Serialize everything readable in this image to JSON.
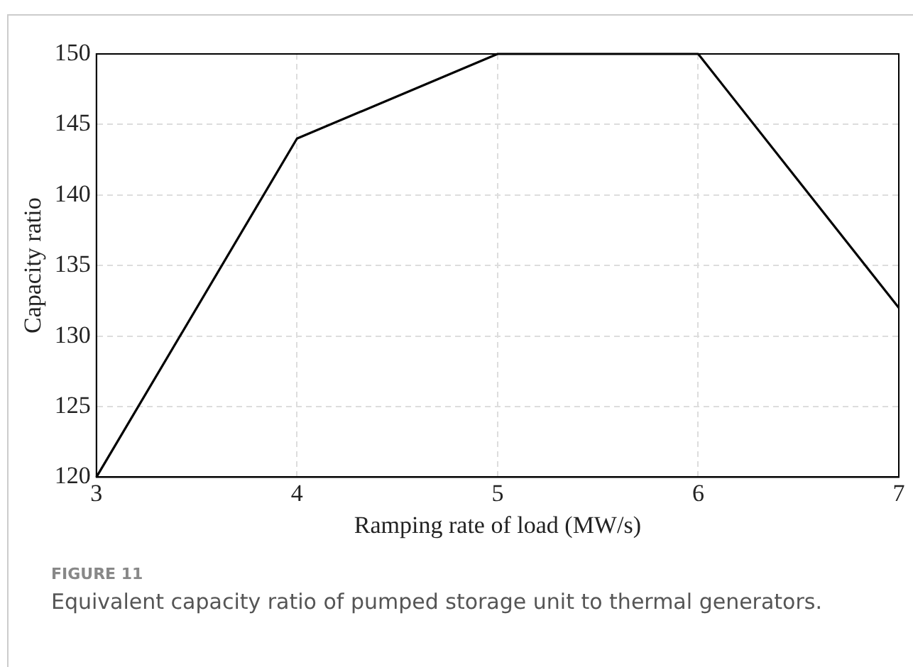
{
  "chart_data": {
    "type": "line",
    "xlabel": "Ramping rate of load (MW/s)",
    "ylabel": "Capacity ratio",
    "x": [
      3,
      4,
      5,
      6,
      7
    ],
    "series": [
      {
        "color": "#000000",
        "values": [
          120,
          144,
          150,
          150,
          132
        ]
      }
    ],
    "xlim": [
      3,
      7
    ],
    "xticks": [
      3,
      4,
      5,
      6,
      7
    ],
    "ylim": [
      120,
      150
    ],
    "yticks": [
      120,
      125,
      130,
      135,
      140,
      145,
      150
    ],
    "grid": true,
    "legend": false,
    "marker": "none",
    "line_style": "solid",
    "annotations": [
      "FIGURE 11",
      "Equivalent capacity ratio of pumped storage unit to thermal generators."
    ]
  }
}
